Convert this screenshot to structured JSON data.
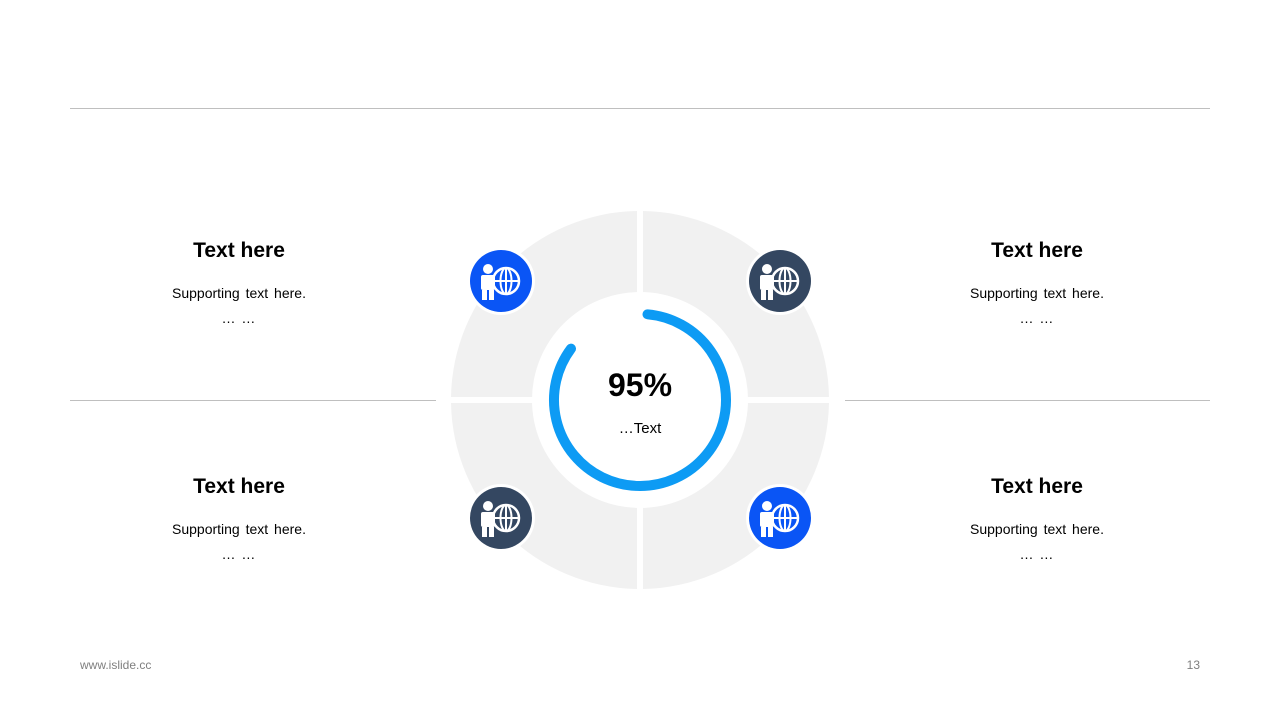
{
  "slide": {
    "blocks": [
      {
        "title": "Text here",
        "subtitle": "Supporting text here.",
        "dots": "… …"
      },
      {
        "title": "Text here",
        "subtitle": "Supporting text here.",
        "dots": "… …"
      },
      {
        "title": "Text here",
        "subtitle": "Supporting text here.",
        "dots": "… …"
      },
      {
        "title": "Text here",
        "subtitle": "Supporting text here.",
        "dots": "… …"
      }
    ],
    "center": {
      "value": "95%",
      "label": "…Text"
    },
    "progress": 0.95,
    "icons": [
      {
        "name": "person-globe-icon",
        "color": "#0a55f5"
      },
      {
        "name": "person-globe-icon",
        "color": "#344761"
      },
      {
        "name": "person-globe-icon",
        "color": "#344761"
      },
      {
        "name": "person-globe-icon",
        "color": "#0a55f5"
      }
    ],
    "colors": {
      "ring": "#f1f1f1",
      "progress": "#0d9bf4",
      "rule": "#bfbfbf"
    }
  },
  "footer": {
    "website": "www.islide.cc",
    "page_number": "13"
  }
}
